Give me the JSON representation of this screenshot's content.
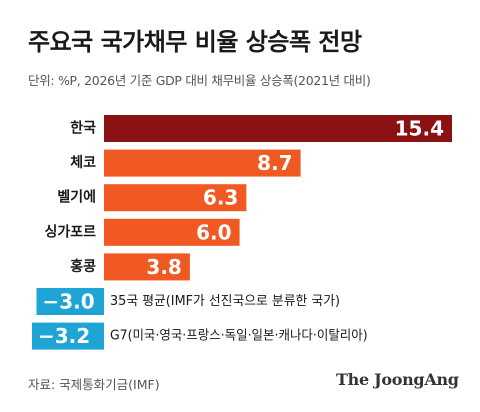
{
  "header": {
    "title": "주요국 국가채무 비율 상승폭 전망",
    "subtitle": "단위: %P, 2026년 기준 GDP 대비 채무비율 상승폭(2021년 대비)"
  },
  "chart_data": {
    "type": "bar",
    "orientation": "horizontal",
    "title": "주요국 국가채무 비율 상승폭 전망",
    "unit": "%P",
    "categories": [
      "한국",
      "체코",
      "벨기에",
      "싱가포르",
      "홍콩",
      "35국 평균(IMF가 선진국으로 분류한 국가)",
      "G7(미국·영국·프랑스·독일·일본·캐나다·이탈리아)"
    ],
    "values": [
      15.4,
      8.7,
      6.3,
      6.0,
      3.8,
      -3.0,
      -3.2
    ],
    "value_labels": [
      "15.4",
      "8.7",
      "6.3",
      "6.0",
      "3.8",
      "−3.0",
      "−3.2"
    ],
    "xlim": [
      -3.2,
      15.4
    ],
    "grid": false,
    "colors": {
      "highlight": "#8b1212",
      "positive": "#f05a22",
      "negative": "#1ea5d6"
    }
  },
  "footer": {
    "source": "자료: 국제통화기금(IMF)",
    "logo": "The JoongAng"
  }
}
